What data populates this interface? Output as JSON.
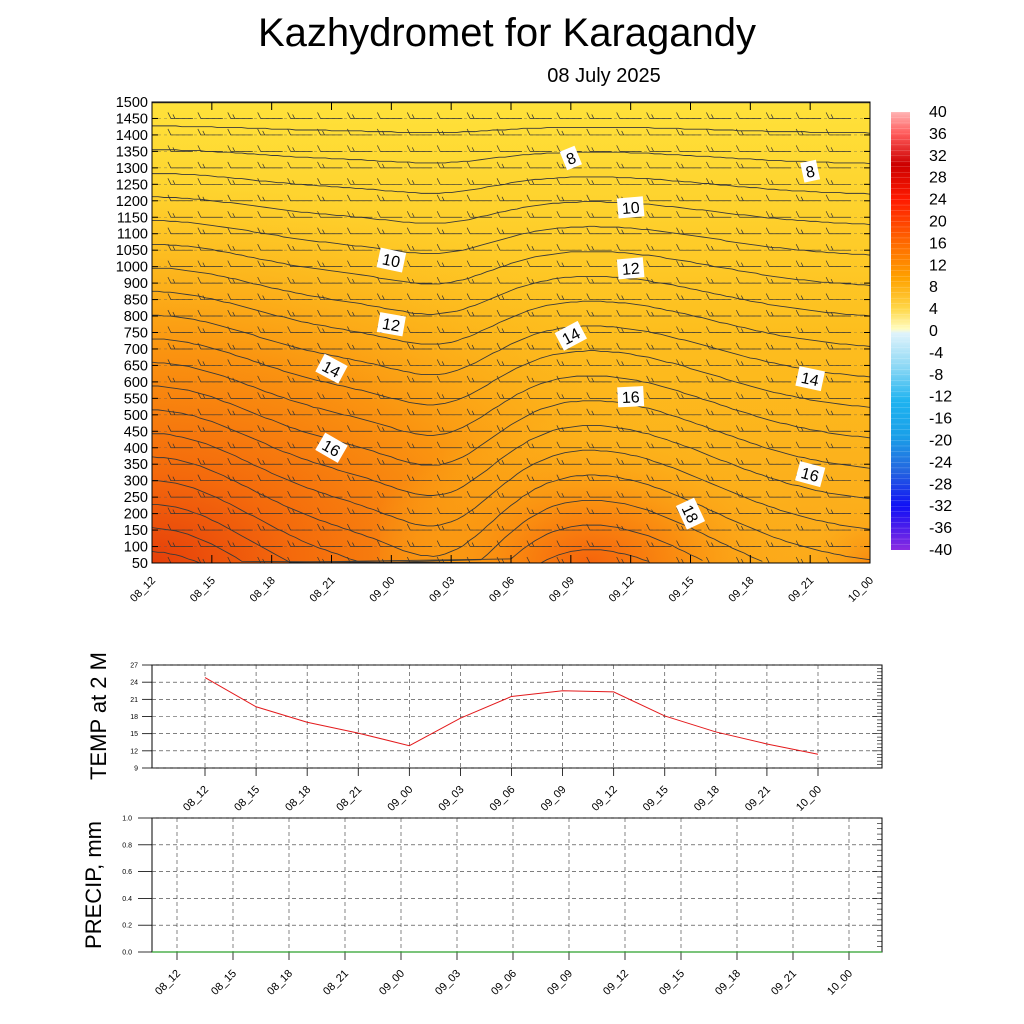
{
  "title": "Kazhydromet  for Karagandy",
  "subtitle": "08 July 2025",
  "time_labels": [
    "08_12",
    "08_15",
    "08_18",
    "08_21",
    "09_00",
    "09_03",
    "09_06",
    "09_09",
    "09_12",
    "09_15",
    "09_18",
    "09_21",
    "10_00"
  ],
  "chart_data": [
    {
      "type": "heatmap",
      "name": "",
      "yticks": [
        50,
        100,
        150,
        200,
        250,
        300,
        350,
        400,
        450,
        500,
        550,
        600,
        650,
        700,
        750,
        800,
        850,
        900,
        1000,
        1050,
        1100,
        1150,
        1200,
        1250,
        1300,
        1350,
        1400,
        1450,
        1500
      ],
      "colorbar_ticks": [
        40,
        36,
        32,
        28,
        24,
        20,
        16,
        12,
        8,
        4,
        0,
        -4,
        -8,
        -12,
        -16,
        -20,
        -24,
        -28,
        -32,
        -36,
        -40
      ],
      "colorbar_range": [
        -40,
        40
      ],
      "contour_labels": [
        {
          "text": "8",
          "time": "09_09",
          "level": 1330,
          "rot": -22
        },
        {
          "text": "8",
          "time": "09_21",
          "level": 1290,
          "rot": -12
        },
        {
          "text": "10",
          "time": "09_12",
          "level": 1180,
          "rot": -5
        },
        {
          "text": "10",
          "time": "09_00",
          "level": 1020,
          "rot": 12
        },
        {
          "text": "12",
          "time": "09_12",
          "level": 990,
          "rot": -5
        },
        {
          "text": "12",
          "time": "09_00",
          "level": 775,
          "rot": 10
        },
        {
          "text": "14",
          "time": "09_09",
          "level": 740,
          "rot": -28
        },
        {
          "text": "14",
          "time": "08_21",
          "level": 640,
          "rot": 28
        },
        {
          "text": "14",
          "time": "09_21",
          "level": 610,
          "rot": 12
        },
        {
          "text": "16",
          "time": "09_12",
          "level": 555,
          "rot": -3
        },
        {
          "text": "16",
          "time": "08_21",
          "level": 400,
          "rot": 30
        },
        {
          "text": "16",
          "time": "09_21",
          "level": 320,
          "rot": 15
        },
        {
          "text": "18",
          "time": "09_15",
          "level": 200,
          "rot": 65
        }
      ],
      "colors": {
        "base": "#fdc21c",
        "upper": "#ffe53a",
        "warm": "#f98a0c",
        "hot": "#e8480a"
      }
    },
    {
      "type": "line",
      "ylabel": "TEMP at 2 M",
      "ylim": [
        9,
        27
      ],
      "yticks": [
        9,
        12,
        15,
        18,
        21,
        24,
        27
      ],
      "series": [
        {
          "color": "#e31a1c",
          "x": [
            "08_12",
            "08_15",
            "08_18",
            "08_21",
            "09_00",
            "09_03",
            "09_06",
            "09_09",
            "09_12",
            "09_15",
            "09_18",
            "09_21",
            "10_00"
          ],
          "values": [
            24.8,
            19.7,
            17.0,
            15.1,
            12.9,
            17.7,
            21.5,
            22.5,
            22.3,
            18.1,
            15.3,
            13.2,
            11.4
          ]
        }
      ],
      "grid": true
    },
    {
      "type": "line",
      "ylabel": "PRECIP, mm",
      "ylim": [
        0.0,
        1.0
      ],
      "yticks": [
        "0.0",
        "0.2",
        "0.4",
        "0.6",
        "0.8",
        "1.0"
      ],
      "series": [
        {
          "color": "#2ca02c",
          "x": [
            "08_12",
            "08_15",
            "08_18",
            "08_21",
            "09_00",
            "09_03",
            "09_06",
            "09_09",
            "09_12",
            "09_15",
            "09_18",
            "09_21",
            "10_00"
          ],
          "values": [
            0,
            0,
            0,
            0,
            0,
            0,
            0,
            0,
            0,
            0,
            0,
            0,
            0
          ]
        }
      ],
      "grid": true
    }
  ]
}
